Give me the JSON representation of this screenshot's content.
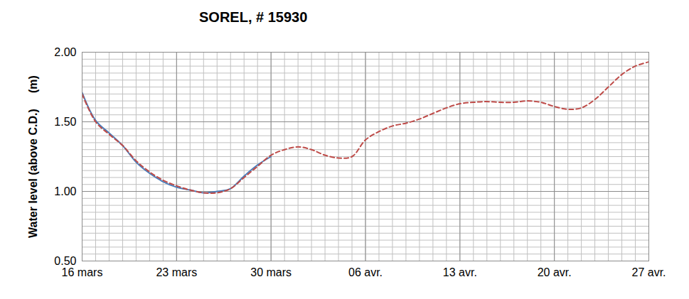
{
  "chart_data": {
    "type": "line",
    "title": "SOREL, # 15930",
    "y_label": "Water level (above C.D.)     (m)",
    "categories": [
      "16 mars",
      null,
      null,
      null,
      null,
      null,
      null,
      "23 mars",
      null,
      null,
      null,
      null,
      null,
      null,
      "30 mars",
      null,
      null,
      null,
      null,
      null,
      null,
      "06 avr.",
      null,
      null,
      null,
      null,
      null,
      null,
      "13 avr.",
      null,
      null,
      null,
      null,
      null,
      null,
      "20 avr.",
      null,
      null,
      null,
      null,
      null,
      null,
      "27 avr."
    ],
    "series": [
      {
        "color": "#4a7ebb",
        "line_style": "solid",
        "values": [
          1.71,
          1.51,
          1.42,
          1.33,
          1.21,
          1.13,
          1.07,
          1.03,
          1.01,
          0.99,
          1.0,
          1.02,
          1.11,
          1.19,
          1.25,
          null,
          null,
          null,
          null,
          null,
          null,
          null,
          null,
          null,
          null,
          null,
          null,
          null,
          null,
          null,
          null,
          null,
          null,
          null,
          null,
          null,
          null,
          null,
          null,
          null,
          null,
          null,
          null
        ]
      },
      {
        "color": "#be4b48",
        "line_style": "dashed",
        "values": [
          1.7,
          1.5,
          1.41,
          1.33,
          1.22,
          1.14,
          1.08,
          1.04,
          1.01,
          0.99,
          0.99,
          1.02,
          1.1,
          1.18,
          1.26,
          1.3,
          1.32,
          1.3,
          1.26,
          1.24,
          1.25,
          1.37,
          1.43,
          1.47,
          1.49,
          1.52,
          1.56,
          1.6,
          1.63,
          1.64,
          1.645,
          1.64,
          1.64,
          1.65,
          1.64,
          1.61,
          1.59,
          1.6,
          1.66,
          1.75,
          1.84,
          1.9,
          1.93
        ]
      }
    ],
    "ylim": [
      0.5,
      2.0
    ],
    "yticks": [
      {
        "value": 0.5,
        "label": "0.50"
      },
      {
        "value": 1.0,
        "label": "1.00"
      },
      {
        "value": 1.5,
        "label": "1.50"
      },
      {
        "value": 2.0,
        "label": "2.00"
      }
    ],
    "grid": true
  }
}
